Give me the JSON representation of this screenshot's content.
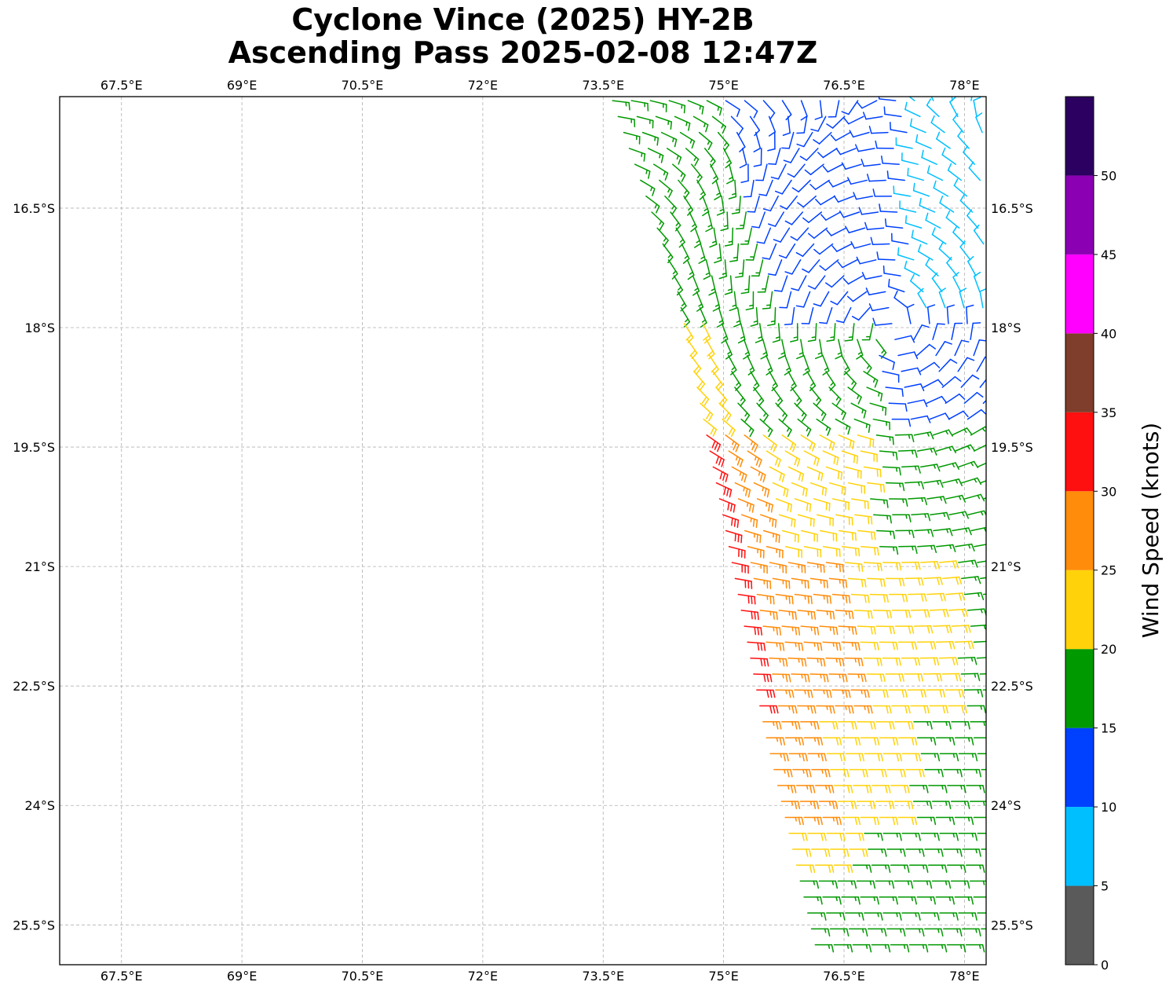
{
  "title": {
    "line1": "Cyclone Vince (2025) HY-2B",
    "line2": "Ascending Pass 2025-02-08 12:47Z"
  },
  "map": {
    "lon_range": [
      66.73,
      78.27
    ],
    "lat_range": [
      -26.0,
      -15.1
    ],
    "lon_ticks": [
      67.5,
      69,
      70.5,
      72,
      73.5,
      75,
      76.5,
      78
    ],
    "lon_tick_labels": [
      "67.5°E",
      "69°E",
      "70.5°E",
      "72°E",
      "73.5°E",
      "75°E",
      "76.5°E",
      "78°E"
    ],
    "lat_ticks": [
      -16.5,
      -18,
      -19.5,
      -21,
      -22.5,
      -24,
      -25.5
    ],
    "lat_tick_labels": [
      "16.5°S",
      "18°S",
      "19.5°S",
      "21°S",
      "22.5°S",
      "24°S",
      "25.5°S"
    ],
    "gridlines": true,
    "gridline_color": "#b0b0b0",
    "storm_center": [
      77.1,
      -18.0
    ],
    "swath_west_edge": [
      [
        73.6,
        -15.1
      ],
      [
        74.4,
        -17.4
      ],
      [
        75.0,
        -20.4
      ],
      [
        75.5,
        -23.0
      ],
      [
        76.2,
        -26.0
      ]
    ]
  },
  "colorbar": {
    "label": "Wind Speed (knots)",
    "ticks": [
      0,
      5,
      10,
      15,
      20,
      25,
      30,
      35,
      40,
      45,
      50
    ],
    "tick_labels": [
      "0",
      "5",
      "10",
      "15",
      "20",
      "25",
      "30",
      "35",
      "40",
      "45",
      "50"
    ],
    "range": [
      0,
      55
    ],
    "bins": [
      {
        "min": 0,
        "max": 5,
        "color": "#5a5a5a"
      },
      {
        "min": 5,
        "max": 10,
        "color": "#00bfff"
      },
      {
        "min": 10,
        "max": 15,
        "color": "#0040ff"
      },
      {
        "min": 15,
        "max": 20,
        "color": "#009900"
      },
      {
        "min": 20,
        "max": 25,
        "color": "#ffd20a"
      },
      {
        "min": 25,
        "max": 30,
        "color": "#ff8c0a"
      },
      {
        "min": 30,
        "max": 35,
        "color": "#ff1010"
      },
      {
        "min": 35,
        "max": 40,
        "color": "#7f3d2b"
      },
      {
        "min": 40,
        "max": 45,
        "color": "#ff00ff"
      },
      {
        "min": 45,
        "max": 50,
        "color": "#8b00b3"
      },
      {
        "min": 50,
        "max": 55,
        "color": "#2c0060"
      }
    ]
  }
}
